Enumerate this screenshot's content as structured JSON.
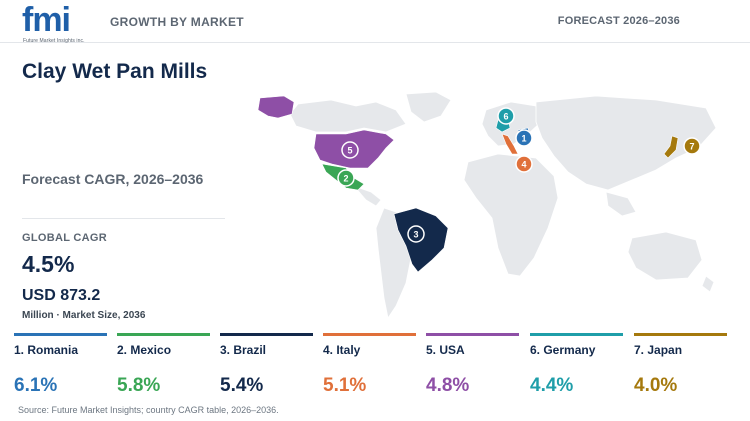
{
  "header": {
    "logo_text": "fmi",
    "logo_sub": "Future Market Insights inc.",
    "left_label": "GROWTH BY MARKET",
    "right_label": "FORECAST 2026–2036"
  },
  "title": "Clay Wet Pan Mills",
  "forecast_label": "Forecast CAGR, 2026–2036",
  "global": {
    "label": "GLOBAL CAGR",
    "value": "4.5%",
    "market_size": "USD 873.2",
    "market_note": "Million · Market Size, 2036"
  },
  "countries": [
    {
      "rank": "1",
      "name": "1. Romania",
      "cagr": "6.1%",
      "color": "#2a73b6"
    },
    {
      "rank": "2",
      "name": "2. Mexico",
      "cagr": "5.8%",
      "color": "#3aa655"
    },
    {
      "rank": "3",
      "name": "3. Brazil",
      "cagr": "5.4%",
      "color": "#13294b"
    },
    {
      "rank": "4",
      "name": "4. Italy",
      "cagr": "5.1%",
      "color": "#e0703a"
    },
    {
      "rank": "5",
      "name": "5. USA",
      "cagr": "4.8%",
      "color": "#8e4fa6"
    },
    {
      "rank": "6",
      "name": "6. Germany",
      "cagr": "4.4%",
      "color": "#1f9ea9"
    },
    {
      "rank": "7",
      "name": "7. Japan",
      "cagr": "4.0%",
      "color": "#a5790d"
    }
  ],
  "map_markers": [
    "1",
    "2",
    "3",
    "4",
    "5",
    "6",
    "7"
  ],
  "source": "Source: Future Market Insights; country CAGR table, 2026–2036."
}
